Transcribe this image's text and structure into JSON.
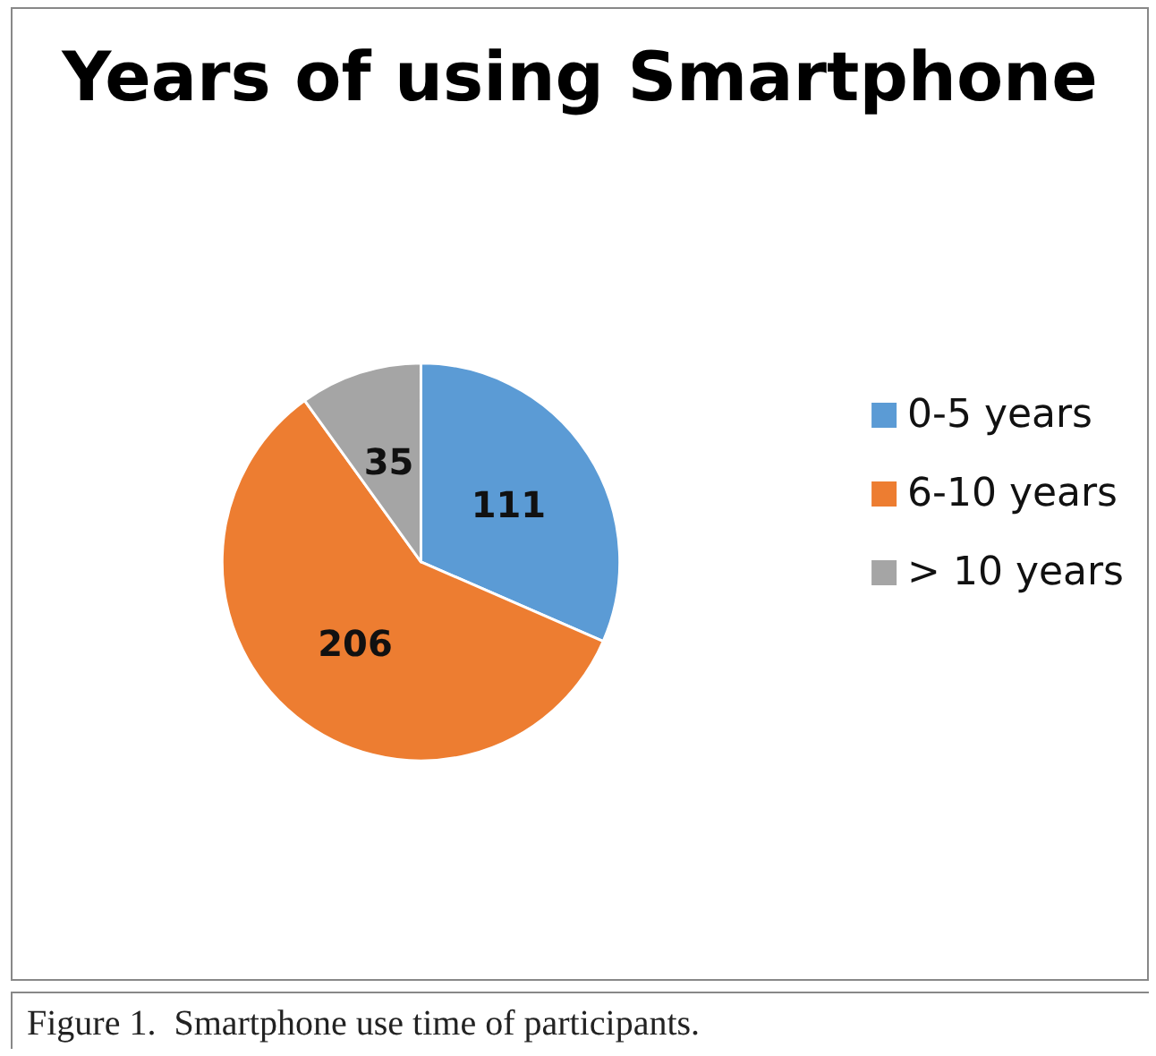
{
  "chart_data": {
    "type": "pie",
    "title": "Years of using Smartphone",
    "categories": [
      "0-5 years",
      "6-10 years",
      "> 10 years"
    ],
    "values": [
      111,
      206,
      35
    ],
    "colors": [
      "#5b9bd5",
      "#ed7d31",
      "#a5a5a5"
    ],
    "data_labels": true,
    "legend": "right",
    "annotations": [
      "Figure 1.  Smartphone use time of participants."
    ]
  }
}
